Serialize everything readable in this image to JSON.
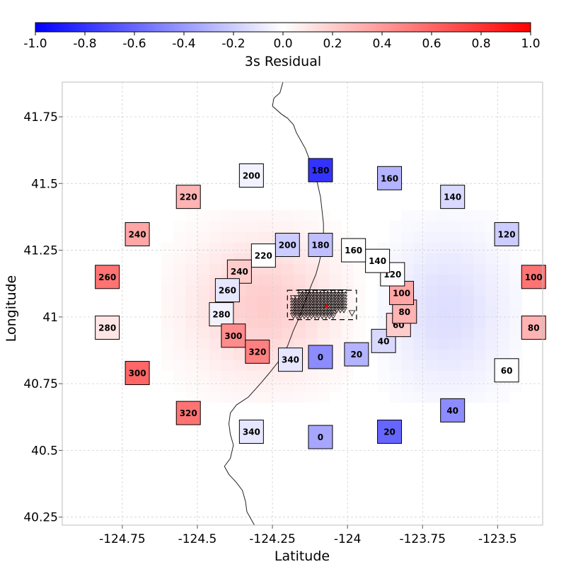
{
  "chart_data": {
    "type": "heatmap",
    "colorbar": {
      "label": "3s Residual",
      "range": [
        -1.0,
        1.0
      ],
      "ticks": [
        "-1.0",
        "-0.8",
        "-0.6",
        "-0.4",
        "-0.2",
        "0.0",
        "0.2",
        "0.4",
        "0.6",
        "0.8",
        "1.0"
      ],
      "colors": [
        "#0000ff",
        "#ffffff",
        "#ff0000"
      ]
    },
    "xlabel": "Latitude",
    "ylabel": "Longitude",
    "xlim": [
      -124.95,
      -123.35
    ],
    "ylim": [
      40.22,
      41.88
    ],
    "xticks": [
      {
        "value": -124.75,
        "label": "-124.75"
      },
      {
        "value": -124.5,
        "label": "-124.5"
      },
      {
        "value": -124.25,
        "label": "-124.25"
      },
      {
        "value": -124.0,
        "label": "-124"
      },
      {
        "value": -123.75,
        "label": "-123.75"
      },
      {
        "value": -123.5,
        "label": "-123.5"
      }
    ],
    "yticks": [
      {
        "value": 40.25,
        "label": "40.25"
      },
      {
        "value": 40.5,
        "label": "40.5"
      },
      {
        "value": 40.75,
        "label": "40.75"
      },
      {
        "value": 41.0,
        "label": "41"
      },
      {
        "value": 41.25,
        "label": "41.25"
      },
      {
        "value": 41.5,
        "label": "41.5"
      },
      {
        "value": 41.75,
        "label": "41.75"
      }
    ],
    "grid": true,
    "background_field": {
      "center": [
        -124.0,
        41.03
      ],
      "positive_lobe": {
        "amplitude": 0.2,
        "center": [
          -124.28,
          41.04
        ],
        "sigma": [
          0.17,
          0.18
        ]
      },
      "negative_lobe": {
        "amplitude": -0.13,
        "center": [
          -123.67,
          41.02
        ],
        "sigma": [
          0.14,
          0.2
        ]
      },
      "cell_size": [
        0.04,
        0.04
      ]
    },
    "azimuth_boxes": [
      {
        "label": "0",
        "x": -124.09,
        "y": 40.85,
        "value": -0.45
      },
      {
        "label": "20",
        "x": -123.97,
        "y": 40.86,
        "value": -0.3
      },
      {
        "label": "40",
        "x": -123.88,
        "y": 40.91,
        "value": -0.15
      },
      {
        "label": "60",
        "x": -123.83,
        "y": 40.97,
        "value": 0.2
      },
      {
        "label": "80",
        "x": -123.81,
        "y": 41.02,
        "value": 0.3
      },
      {
        "label": "100",
        "x": -123.82,
        "y": 41.09,
        "value": 0.35
      },
      {
        "label": "120",
        "x": -123.85,
        "y": 41.16,
        "value": 0.0
      },
      {
        "label": "140",
        "x": -123.9,
        "y": 41.21,
        "value": 0.0
      },
      {
        "label": "160",
        "x": -123.98,
        "y": 41.25,
        "value": 0.0
      },
      {
        "label": "180",
        "x": -124.09,
        "y": 41.27,
        "value": -0.25
      },
      {
        "label": "200",
        "x": -124.2,
        "y": 41.27,
        "value": -0.2
      },
      {
        "label": "220",
        "x": -124.28,
        "y": 41.23,
        "value": 0.0
      },
      {
        "label": "240",
        "x": -124.36,
        "y": 41.17,
        "value": 0.2
      },
      {
        "label": "260",
        "x": -124.4,
        "y": 41.1,
        "value": -0.1
      },
      {
        "label": "280",
        "x": -124.42,
        "y": 41.01,
        "value": -0.05
      },
      {
        "label": "300",
        "x": -124.38,
        "y": 40.93,
        "value": 0.45
      },
      {
        "label": "320",
        "x": -124.3,
        "y": 40.87,
        "value": 0.5
      },
      {
        "label": "340",
        "x": -124.19,
        "y": 40.84,
        "value": -0.1
      },
      {
        "label": "0",
        "x": -124.09,
        "y": 40.55,
        "value": -0.35
      },
      {
        "label": "20",
        "x": -123.86,
        "y": 40.57,
        "value": -0.6
      },
      {
        "label": "40",
        "x": -123.65,
        "y": 40.65,
        "value": -0.45
      },
      {
        "label": "60",
        "x": -123.47,
        "y": 40.8,
        "value": 0.0
      },
      {
        "label": "80",
        "x": -123.38,
        "y": 40.96,
        "value": 0.3
      },
      {
        "label": "100",
        "x": -123.38,
        "y": 41.15,
        "value": 0.55
      },
      {
        "label": "120",
        "x": -123.47,
        "y": 41.31,
        "value": -0.2
      },
      {
        "label": "140",
        "x": -123.65,
        "y": 41.45,
        "value": -0.15
      },
      {
        "label": "160",
        "x": -123.86,
        "y": 41.52,
        "value": -0.3
      },
      {
        "label": "180",
        "x": -124.09,
        "y": 41.55,
        "value": -0.8
      },
      {
        "label": "200",
        "x": -124.32,
        "y": 41.53,
        "value": -0.05
      },
      {
        "label": "220",
        "x": -124.53,
        "y": 41.45,
        "value": 0.3
      },
      {
        "label": "240",
        "x": -124.7,
        "y": 41.31,
        "value": 0.35
      },
      {
        "label": "260",
        "x": -124.8,
        "y": 41.15,
        "value": 0.55
      },
      {
        "label": "280",
        "x": -124.8,
        "y": 40.96,
        "value": 0.1
      },
      {
        "label": "300",
        "x": -124.7,
        "y": 40.79,
        "value": 0.6
      },
      {
        "label": "320",
        "x": -124.53,
        "y": 40.64,
        "value": 0.55
      },
      {
        "label": "340",
        "x": -124.32,
        "y": 40.57,
        "value": -0.1
      }
    ],
    "station_region": {
      "box": {
        "x0": -124.2,
        "x1": -123.97,
        "y0": 40.99,
        "y1": 41.1
      },
      "marker": "triangle",
      "highlight": {
        "x": -124.07,
        "y": 41.04,
        "color": "#ff0000"
      }
    },
    "coastline": [
      [
        -124.215,
        41.88
      ],
      [
        -124.225,
        41.84
      ],
      [
        -124.245,
        41.82
      ],
      [
        -124.25,
        41.79
      ],
      [
        -124.22,
        41.76
      ],
      [
        -124.2,
        41.745
      ],
      [
        -124.18,
        41.72
      ],
      [
        -124.17,
        41.69
      ],
      [
        -124.155,
        41.66
      ],
      [
        -124.14,
        41.63
      ],
      [
        -124.13,
        41.6
      ],
      [
        -124.115,
        41.55
      ],
      [
        -124.1,
        41.5
      ],
      [
        -124.09,
        41.45
      ],
      [
        -124.085,
        41.4
      ],
      [
        -124.08,
        41.35
      ],
      [
        -124.08,
        41.3
      ],
      [
        -124.085,
        41.25
      ],
      [
        -124.095,
        41.2
      ],
      [
        -124.105,
        41.16
      ],
      [
        -124.12,
        41.12
      ],
      [
        -124.14,
        41.06
      ],
      [
        -124.16,
        41.0
      ],
      [
        -124.18,
        40.95
      ],
      [
        -124.2,
        40.89
      ],
      [
        -124.225,
        40.84
      ],
      [
        -124.26,
        40.79
      ],
      [
        -124.29,
        40.75
      ],
      [
        -124.33,
        40.7
      ],
      [
        -124.37,
        40.67
      ],
      [
        -124.39,
        40.64
      ],
      [
        -124.395,
        40.6
      ],
      [
        -124.39,
        40.56
      ],
      [
        -124.38,
        40.52
      ],
      [
        -124.39,
        40.47
      ],
      [
        -124.41,
        40.44
      ],
      [
        -124.395,
        40.41
      ],
      [
        -124.37,
        40.38
      ],
      [
        -124.35,
        40.35
      ],
      [
        -124.34,
        40.31
      ],
      [
        -124.335,
        40.27
      ],
      [
        -124.32,
        40.24
      ],
      [
        -124.31,
        40.22
      ]
    ]
  }
}
